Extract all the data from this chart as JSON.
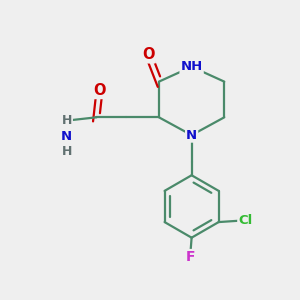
{
  "bg_color": "#efefef",
  "bond_color": "#4a8a6a",
  "bond_width": 1.6,
  "atom_colors": {
    "C": "#4a8a6a",
    "N": "#1010cc",
    "O": "#cc0000",
    "H": "#607070",
    "Cl": "#33bb33",
    "F": "#cc33cc"
  },
  "font_size": 9.5,
  "fig_size": [
    3.0,
    3.0
  ],
  "dpi": 100
}
